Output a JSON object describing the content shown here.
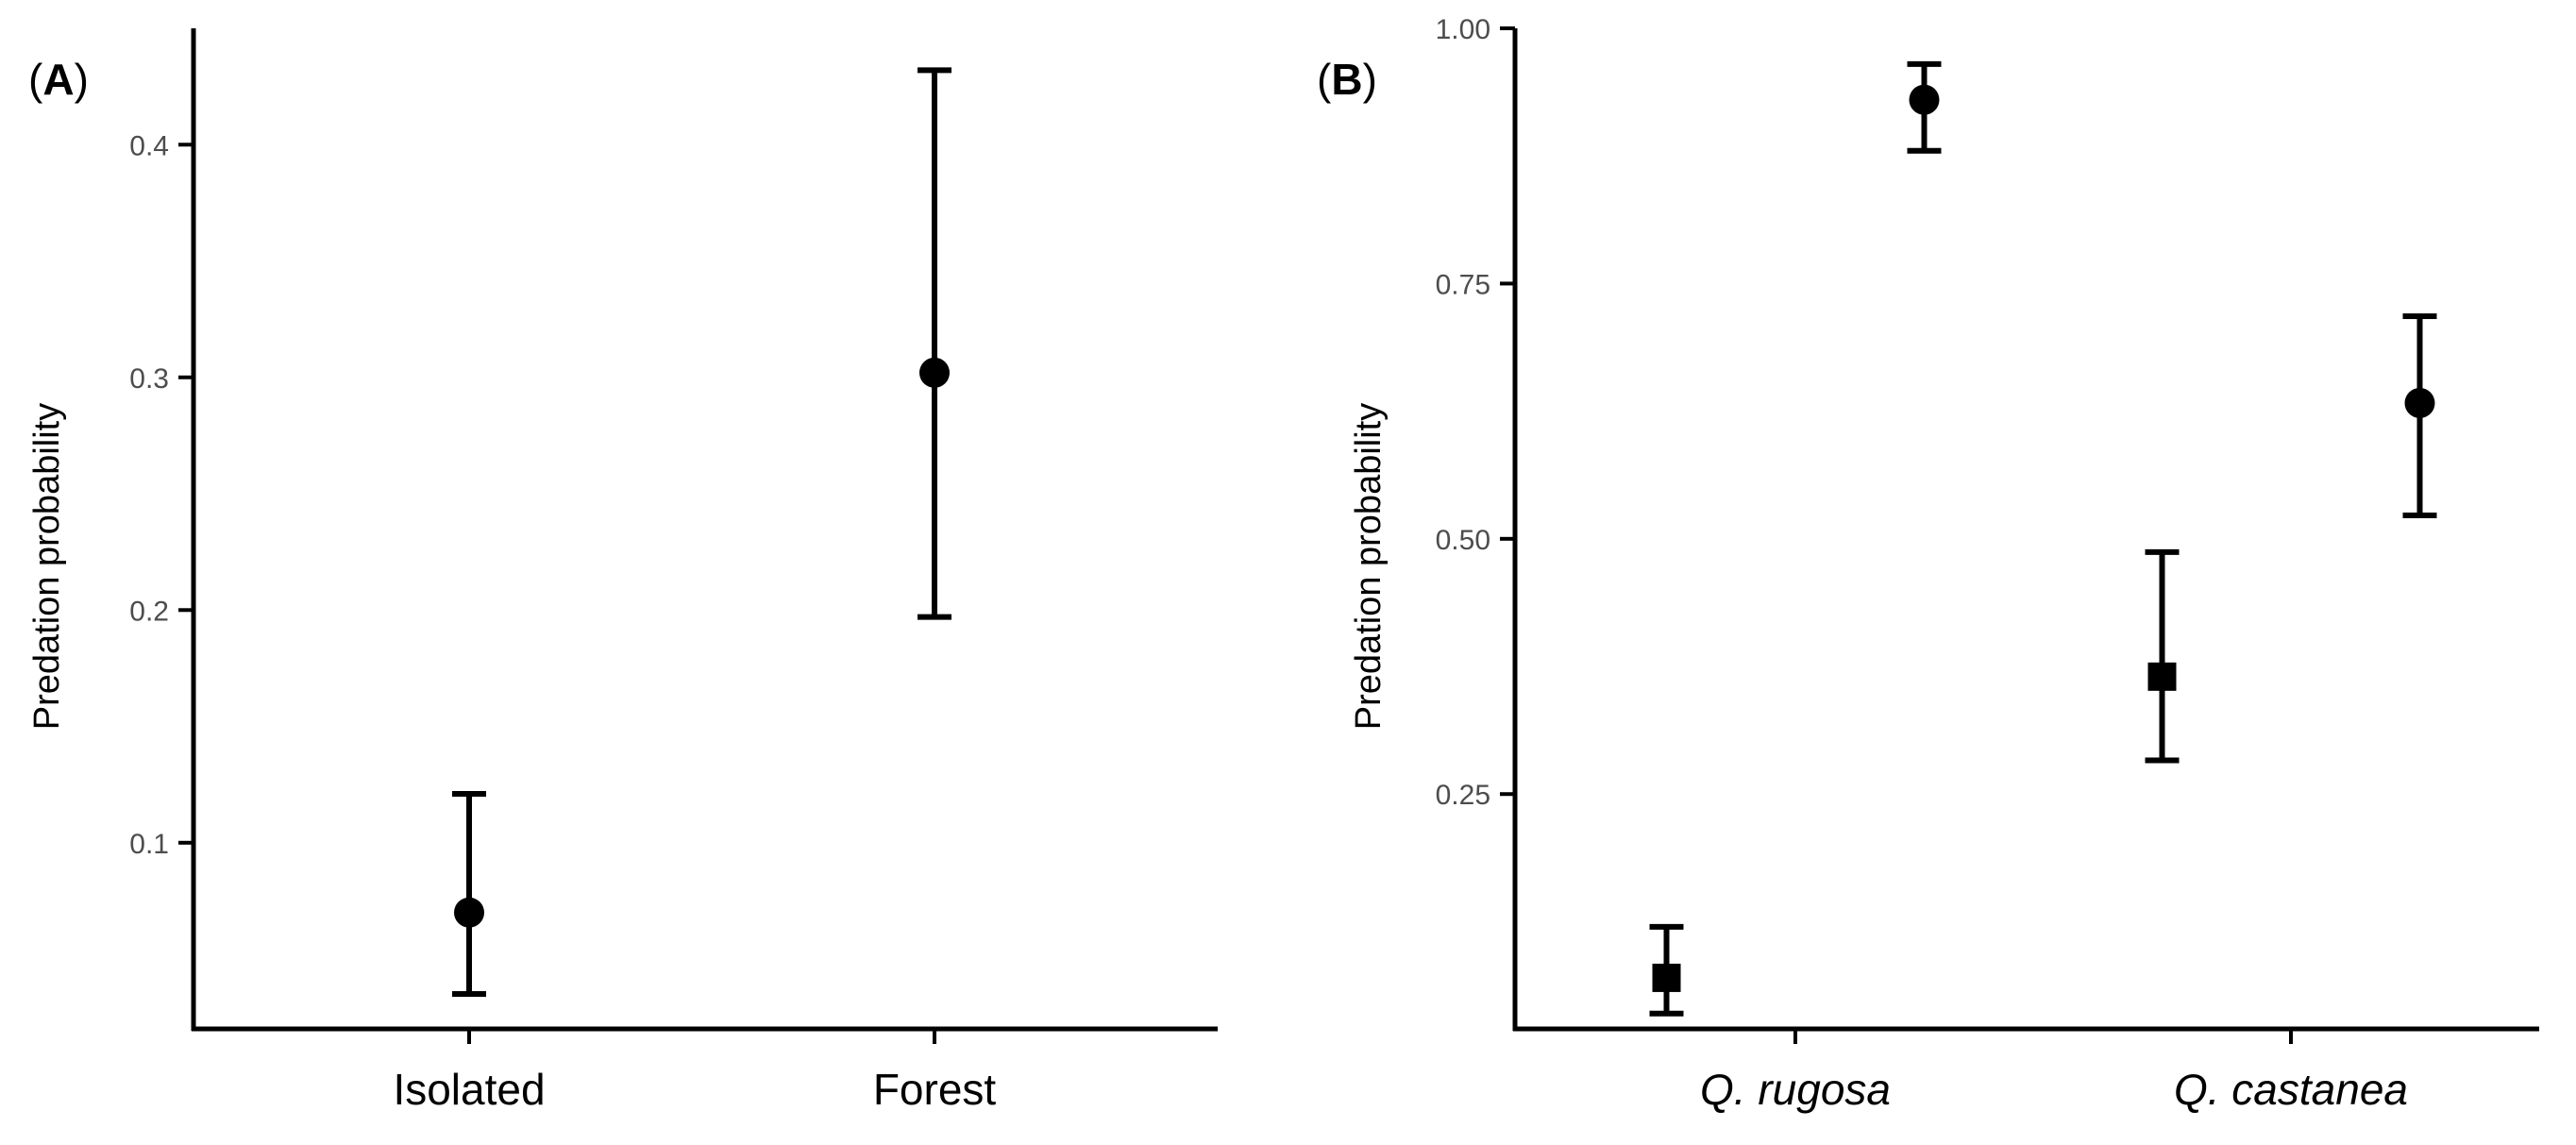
{
  "chart_data": [
    {
      "type": "scatter",
      "panel_label": "A",
      "categories": [
        "Isolated",
        "Forest"
      ],
      "ylabel": "Predation probability",
      "xlabel": "",
      "ylim": [
        0.02,
        0.45
      ],
      "yticks": [
        0.1,
        0.2,
        0.3,
        0.4
      ],
      "ytick_labels": [
        "0.1",
        "0.2",
        "0.3",
        "0.4"
      ],
      "grid": false,
      "legend": "none",
      "points": [
        {
          "category": "Isolated",
          "offset": 0,
          "marker": "circle",
          "value": 0.07,
          "lower": 0.035,
          "upper": 0.121
        },
        {
          "category": "Forest",
          "offset": 0,
          "marker": "circle",
          "value": 0.302,
          "lower": 0.197,
          "upper": 0.432
        }
      ]
    },
    {
      "type": "scatter",
      "panel_label": "B",
      "categories": [
        "Q. rugosa",
        "Q. castanea"
      ],
      "ylabel": "Predation probability",
      "xlabel": "",
      "ylim": [
        0.02,
        1.0
      ],
      "yticks": [
        0.25,
        0.5,
        0.75,
        1.0
      ],
      "ytick_labels": [
        "0.25",
        "0.50",
        "0.75",
        "1.00"
      ],
      "grid": false,
      "legend": "none",
      "points": [
        {
          "category": "Q. rugosa",
          "offset": -0.26,
          "marker": "square",
          "value": 0.07,
          "lower": 0.035,
          "upper": 0.12
        },
        {
          "category": "Q. rugosa",
          "offset": 0.26,
          "marker": "circle",
          "value": 0.93,
          "lower": 0.88,
          "upper": 0.965
        },
        {
          "category": "Q. castanea",
          "offset": -0.26,
          "marker": "square",
          "value": 0.365,
          "lower": 0.283,
          "upper": 0.487
        },
        {
          "category": "Q. castanea",
          "offset": 0.26,
          "marker": "circle",
          "value": 0.633,
          "lower": 0.523,
          "upper": 0.718
        }
      ]
    }
  ]
}
